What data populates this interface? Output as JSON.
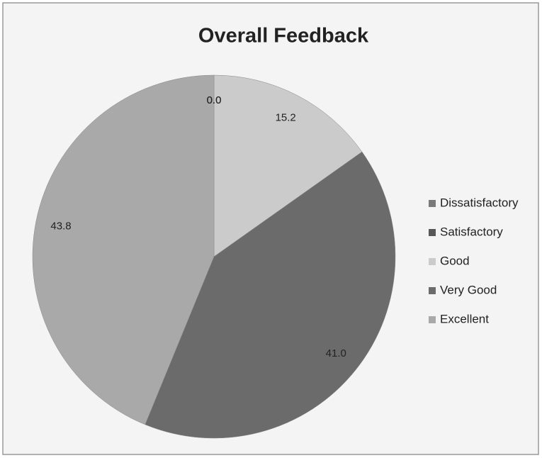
{
  "chart_data": {
    "type": "pie",
    "title": "Overall Feedback",
    "categories": [
      "Dissatisfactory",
      "Satisfactory",
      "Good",
      "Very Good",
      "Excellent"
    ],
    "values": [
      0,
      0,
      15.2,
      41.0,
      43.8
    ],
    "value_labels": [
      "0.0",
      "0.0",
      "15.2",
      "41.0",
      "43.8"
    ],
    "colors": [
      "#7a7a7a",
      "#575757",
      "#cbcbcb",
      "#6b6b6b",
      "#a9a9a9"
    ],
    "legend": "right"
  }
}
